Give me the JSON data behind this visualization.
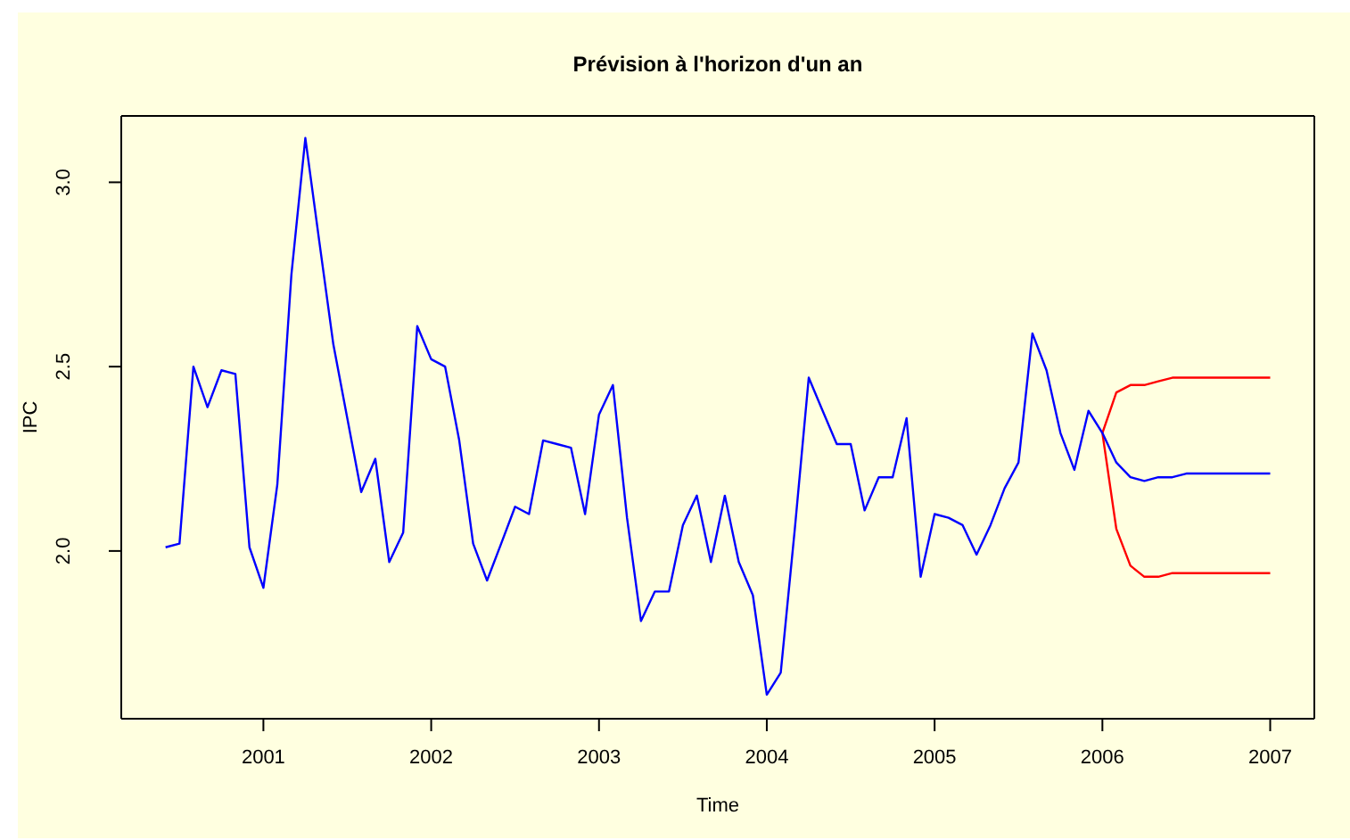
{
  "chart_data": {
    "type": "line",
    "title": "Prévision à l'horizon d'un an",
    "xlabel": "Time",
    "ylabel": "IPC",
    "xlim": [
      2000.153,
      2007.263
    ],
    "xticks": [
      2001,
      2002,
      2003,
      2004,
      2005,
      2006,
      2007
    ],
    "ylim": [
      1.545,
      3.18
    ],
    "yticks": [
      {
        "value": 2,
        "label": "2.0"
      },
      2.5,
      {
        "value": 3,
        "label": "3.0"
      }
    ],
    "marker": "none",
    "line_style": "solid",
    "series": [
      {
        "color": "#ff0000",
        "x": [
          2006,
          2006.083,
          2006.167,
          2006.25,
          2006.333,
          2006.417,
          2006.5,
          2006.583,
          2006.667,
          2006.75,
          2006.833,
          2006.917,
          2007
        ],
        "values": [
          2.32,
          2.43,
          2.45,
          2.45,
          2.46,
          2.47,
          2.47,
          2.47,
          2.47,
          2.47,
          2.47,
          2.47,
          2.47
        ]
      },
      {
        "color": "#ff0000",
        "x": [
          2006,
          2006.083,
          2006.167,
          2006.25,
          2006.333,
          2006.417,
          2006.5,
          2006.583,
          2006.667,
          2006.75,
          2006.833,
          2006.917,
          2007
        ],
        "values": [
          2.32,
          2.06,
          1.96,
          1.93,
          1.93,
          1.94,
          1.94,
          1.94,
          1.94,
          1.94,
          1.94,
          1.94,
          1.94
        ]
      },
      {
        "color": "#0000ff",
        "x": [
          2000.417,
          2000.5,
          2000.583,
          2000.667,
          2000.75,
          2000.833,
          2000.917,
          2001,
          2001.083,
          2001.167,
          2001.25,
          2001.333,
          2001.417,
          2001.5,
          2001.583,
          2001.667,
          2001.75,
          2001.833,
          2001.917,
          2002,
          2002.083,
          2002.167,
          2002.25,
          2002.333,
          2002.417,
          2002.5,
          2002.583,
          2002.667,
          2002.75,
          2002.833,
          2002.917,
          2003,
          2003.083,
          2003.167,
          2003.25,
          2003.333,
          2003.417,
          2003.5,
          2003.583,
          2003.667,
          2003.75,
          2003.833,
          2003.917,
          2004,
          2004.083,
          2004.167,
          2004.25,
          2004.333,
          2004.417,
          2004.5,
          2004.583,
          2004.667,
          2004.75,
          2004.833,
          2004.917,
          2005,
          2005.083,
          2005.167,
          2005.25,
          2005.333,
          2005.417,
          2005.5,
          2005.583,
          2005.667,
          2005.75,
          2005.833,
          2005.917,
          2006,
          2006.083,
          2006.167,
          2006.25,
          2006.333,
          2006.417,
          2006.5,
          2006.583,
          2006.667,
          2006.75,
          2006.833,
          2006.917,
          2007
        ],
        "values": [
          2.01,
          2.02,
          2.5,
          2.39,
          2.49,
          2.48,
          2.01,
          1.9,
          2.18,
          2.75,
          3.12,
          2.84,
          2.56,
          2.36,
          2.16,
          2.25,
          1.97,
          2.05,
          2.61,
          2.52,
          2.5,
          2.3,
          2.02,
          1.92,
          2.02,
          2.12,
          2.1,
          2.3,
          2.29,
          2.28,
          2.1,
          2.37,
          2.45,
          2.09,
          1.81,
          1.89,
          1.89,
          2.07,
          2.15,
          1.97,
          2.15,
          1.97,
          1.88,
          1.61,
          1.67,
          2.06,
          2.47,
          2.38,
          2.29,
          2.29,
          2.11,
          2.2,
          2.2,
          2.36,
          1.93,
          2.1,
          2.09,
          2.07,
          1.99,
          2.07,
          2.17,
          2.24,
          2.59,
          2.49,
          2.32,
          2.22,
          2.38,
          2.32,
          2.24,
          2.2,
          2.19,
          2.2,
          2.2,
          2.21,
          2.21,
          2.21,
          2.21,
          2.21,
          2.21,
          2.21
        ]
      }
    ]
  }
}
